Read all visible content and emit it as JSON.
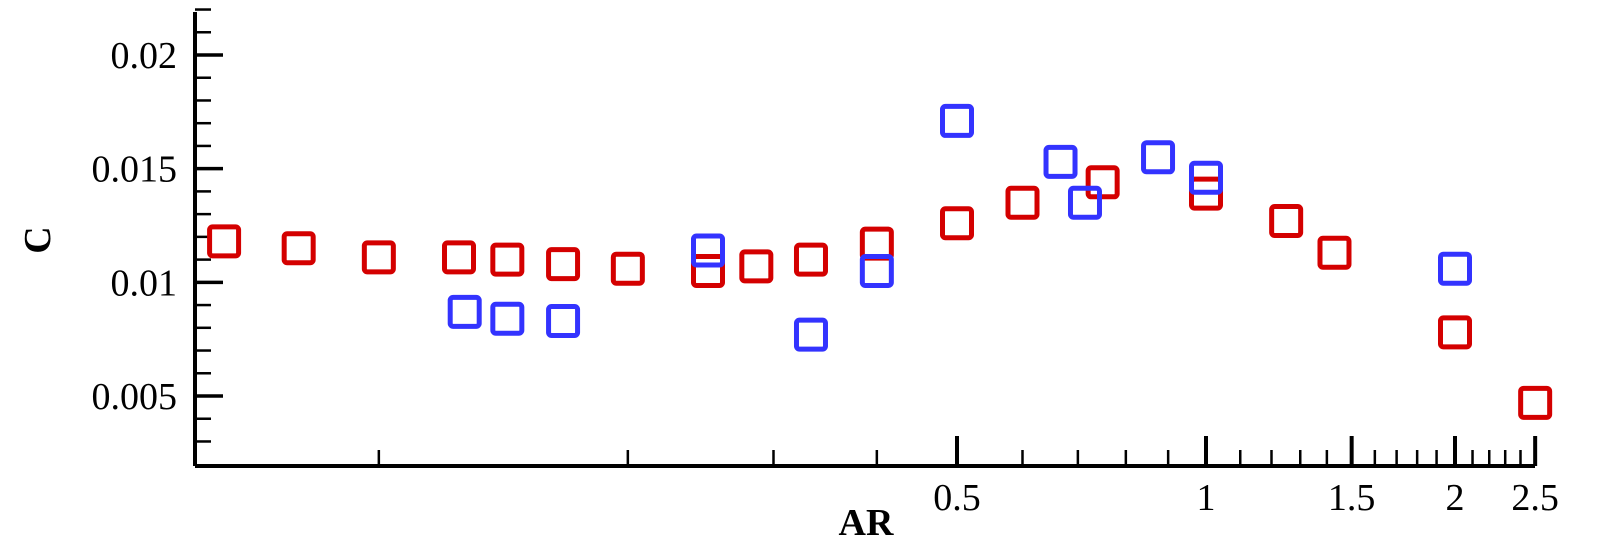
{
  "chart_data": {
    "type": "scatter",
    "xlabel": "AR",
    "ylabel": "C",
    "x_scale": "log",
    "xlim": [
      0.06,
      2.5
    ],
    "ylim": [
      0.002,
      0.022
    ],
    "x_tick_labels": [
      {
        "value": 0.5,
        "label": "0.5"
      },
      {
        "value": 1,
        "label": "1"
      },
      {
        "value": 1.5,
        "label": "1.5"
      },
      {
        "value": 2,
        "label": "2"
      },
      {
        "value": 2.5,
        "label": "2.5"
      }
    ],
    "y_tick_labels": [
      {
        "value": 0.005,
        "label": "0.005"
      },
      {
        "value": 0.01,
        "label": "0.01"
      },
      {
        "value": 0.015,
        "label": "0.015"
      },
      {
        "value": 0.02,
        "label": "0.02"
      }
    ],
    "grid": false,
    "marker": "open-square",
    "series": [
      {
        "color": "#d40000",
        "points": [
          {
            "x": 0.065,
            "y": 0.0118
          },
          {
            "x": 0.08,
            "y": 0.0115
          },
          {
            "x": 0.1,
            "y": 0.0111
          },
          {
            "x": 0.125,
            "y": 0.0111
          },
          {
            "x": 0.143,
            "y": 0.011
          },
          {
            "x": 0.167,
            "y": 0.0108
          },
          {
            "x": 0.2,
            "y": 0.0106
          },
          {
            "x": 0.25,
            "y": 0.0105
          },
          {
            "x": 0.286,
            "y": 0.0107
          },
          {
            "x": 0.333,
            "y": 0.011
          },
          {
            "x": 0.4,
            "y": 0.0117
          },
          {
            "x": 0.5,
            "y": 0.0126
          },
          {
            "x": 0.6,
            "y": 0.0135
          },
          {
            "x": 0.75,
            "y": 0.0144
          },
          {
            "x": 1.0,
            "y": 0.0139
          },
          {
            "x": 1.25,
            "y": 0.0127
          },
          {
            "x": 1.43,
            "y": 0.0113
          },
          {
            "x": 2.0,
            "y": 0.0078
          },
          {
            "x": 2.5,
            "y": 0.0047
          }
        ]
      },
      {
        "color": "#3333ff",
        "points": [
          {
            "x": 0.127,
            "y": 0.0087
          },
          {
            "x": 0.143,
            "y": 0.0084
          },
          {
            "x": 0.167,
            "y": 0.0083
          },
          {
            "x": 0.25,
            "y": 0.0114
          },
          {
            "x": 0.333,
            "y": 0.0077
          },
          {
            "x": 0.4,
            "y": 0.0105
          },
          {
            "x": 0.5,
            "y": 0.0171
          },
          {
            "x": 0.667,
            "y": 0.0153
          },
          {
            "x": 0.714,
            "y": 0.0135
          },
          {
            "x": 0.875,
            "y": 0.0155
          },
          {
            "x": 1.0,
            "y": 0.0146
          },
          {
            "x": 2.0,
            "y": 0.0106
          }
        ]
      }
    ]
  }
}
